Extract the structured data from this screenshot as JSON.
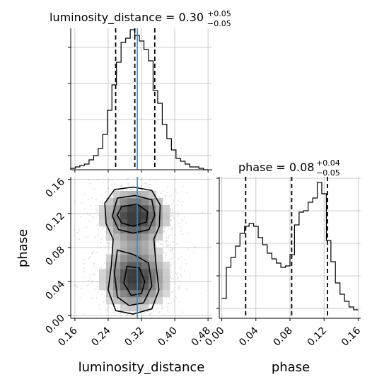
{
  "chart_data": [
    {
      "type": "histogram",
      "panel": "top-left",
      "title": {
        "main": "luminosity_distance = 0.30",
        "plus": "+0.05",
        "minus": "−0.05"
      },
      "xlim": [
        0.15,
        0.49
      ],
      "ylim": [
        0,
        1
      ],
      "bin_edges": [
        0.15,
        0.161,
        0.172,
        0.183,
        0.194,
        0.205,
        0.216,
        0.227,
        0.238,
        0.249,
        0.26,
        0.271,
        0.282,
        0.293,
        0.304,
        0.315,
        0.326,
        0.337,
        0.348,
        0.359,
        0.37,
        0.381,
        0.392,
        0.403,
        0.414,
        0.425,
        0.436,
        0.447,
        0.458,
        0.469,
        0.48
      ],
      "values": [
        0.01,
        0.02,
        0.03,
        0.04,
        0.07,
        0.1,
        0.15,
        0.25,
        0.42,
        0.6,
        0.76,
        0.9,
        0.93,
        0.99,
        0.95,
        0.91,
        0.85,
        0.77,
        0.56,
        0.47,
        0.32,
        0.22,
        0.14,
        0.08,
        0.06,
        0.04,
        0.02,
        0.02,
        0.01,
        0.0
      ],
      "quantile_lines": [
        0.258,
        0.304,
        0.352
      ],
      "truth": 0.31,
      "grid": true
    },
    {
      "type": "histogram",
      "panel": "bottom-right",
      "title": {
        "main": "phase = 0.08",
        "plus": "+0.04",
        "minus": "−0.05"
      },
      "xlabel": "phase",
      "xlim": [
        -0.003,
        0.163
      ],
      "ylim": [
        0,
        1
      ],
      "xticks": [
        "0.00",
        "0.04",
        "0.08",
        "0.12",
        "0.16"
      ],
      "bin_edges": [
        0.0,
        0.0053,
        0.0107,
        0.016,
        0.0213,
        0.0267,
        0.032,
        0.0373,
        0.0427,
        0.048,
        0.0533,
        0.0587,
        0.064,
        0.0693,
        0.0747,
        0.08,
        0.0853,
        0.0907,
        0.096,
        0.1013,
        0.1067,
        0.112,
        0.1173,
        0.1227,
        0.128,
        0.1333,
        0.1387,
        0.144,
        0.1493,
        0.1547,
        0.16
      ],
      "values": [
        0.14,
        0.36,
        0.43,
        0.51,
        0.6,
        0.65,
        0.67,
        0.65,
        0.57,
        0.52,
        0.46,
        0.42,
        0.39,
        0.36,
        0.37,
        0.45,
        0.66,
        0.75,
        0.76,
        0.82,
        0.85,
        0.96,
        0.88,
        0.55,
        0.4,
        0.25,
        0.17,
        0.12,
        0.08,
        0.06
      ],
      "quantile_lines": [
        0.028,
        0.082,
        0.124
      ],
      "grid": true
    },
    {
      "type": "heatmap",
      "panel": "bottom-left",
      "xlabel": "luminosity_distance",
      "ylabel": "phase",
      "xlim": [
        0.15,
        0.49
      ],
      "ylim": [
        -0.003,
        0.163
      ],
      "xticks": [
        "0.16",
        "0.24",
        "0.32",
        "0.40",
        "0.48"
      ],
      "yticks": [
        "0.00",
        "0.04",
        "0.08",
        "0.12",
        "0.16"
      ],
      "mode_upper": [
        0.31,
        0.119
      ],
      "mode_lower": [
        0.302,
        0.04
      ],
      "truth_x": 0.31,
      "grid": true
    }
  ]
}
